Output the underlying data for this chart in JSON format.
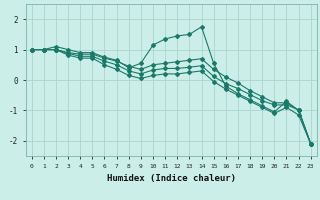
{
  "xlabel": "Humidex (Indice chaleur)",
  "ylabel": "",
  "background_color": "#cceee8",
  "plot_bg_color": "#cceee8",
  "grid_color": "#aad4cc",
  "line_color": "#1a7a6a",
  "xlim": [
    -0.5,
    23.5
  ],
  "ylim": [
    -2.5,
    2.5
  ],
  "yticks": [
    -2,
    -1,
    0,
    1,
    2
  ],
  "xticks": [
    0,
    1,
    2,
    3,
    4,
    5,
    6,
    7,
    8,
    9,
    10,
    11,
    12,
    13,
    14,
    15,
    16,
    17,
    18,
    19,
    20,
    21,
    22,
    23
  ],
  "series": [
    [
      1.0,
      1.0,
      1.1,
      1.0,
      0.9,
      0.9,
      0.75,
      0.65,
      0.4,
      0.55,
      1.15,
      1.35,
      1.45,
      1.5,
      1.75,
      0.55,
      -0.2,
      -0.45,
      -0.65,
      -0.85,
      -1.05,
      -0.7,
      -1.0,
      -2.1
    ],
    [
      1.0,
      1.0,
      1.0,
      0.9,
      0.85,
      0.85,
      0.72,
      0.62,
      0.45,
      0.35,
      0.5,
      0.55,
      0.6,
      0.65,
      0.7,
      0.35,
      0.1,
      -0.1,
      -0.35,
      -0.55,
      -0.75,
      -0.75,
      -1.0,
      -2.1
    ],
    [
      1.0,
      1.0,
      1.0,
      0.88,
      0.78,
      0.78,
      0.62,
      0.5,
      0.3,
      0.2,
      0.33,
      0.38,
      0.38,
      0.42,
      0.47,
      0.12,
      -0.12,
      -0.28,
      -0.48,
      -0.68,
      -0.82,
      -0.82,
      -0.98,
      -2.1
    ],
    [
      1.0,
      1.0,
      1.0,
      0.82,
      0.72,
      0.72,
      0.5,
      0.35,
      0.15,
      0.05,
      0.15,
      0.2,
      0.2,
      0.25,
      0.3,
      -0.05,
      -0.3,
      -0.5,
      -0.7,
      -0.9,
      -1.1,
      -0.9,
      -1.15,
      -2.1
    ]
  ]
}
